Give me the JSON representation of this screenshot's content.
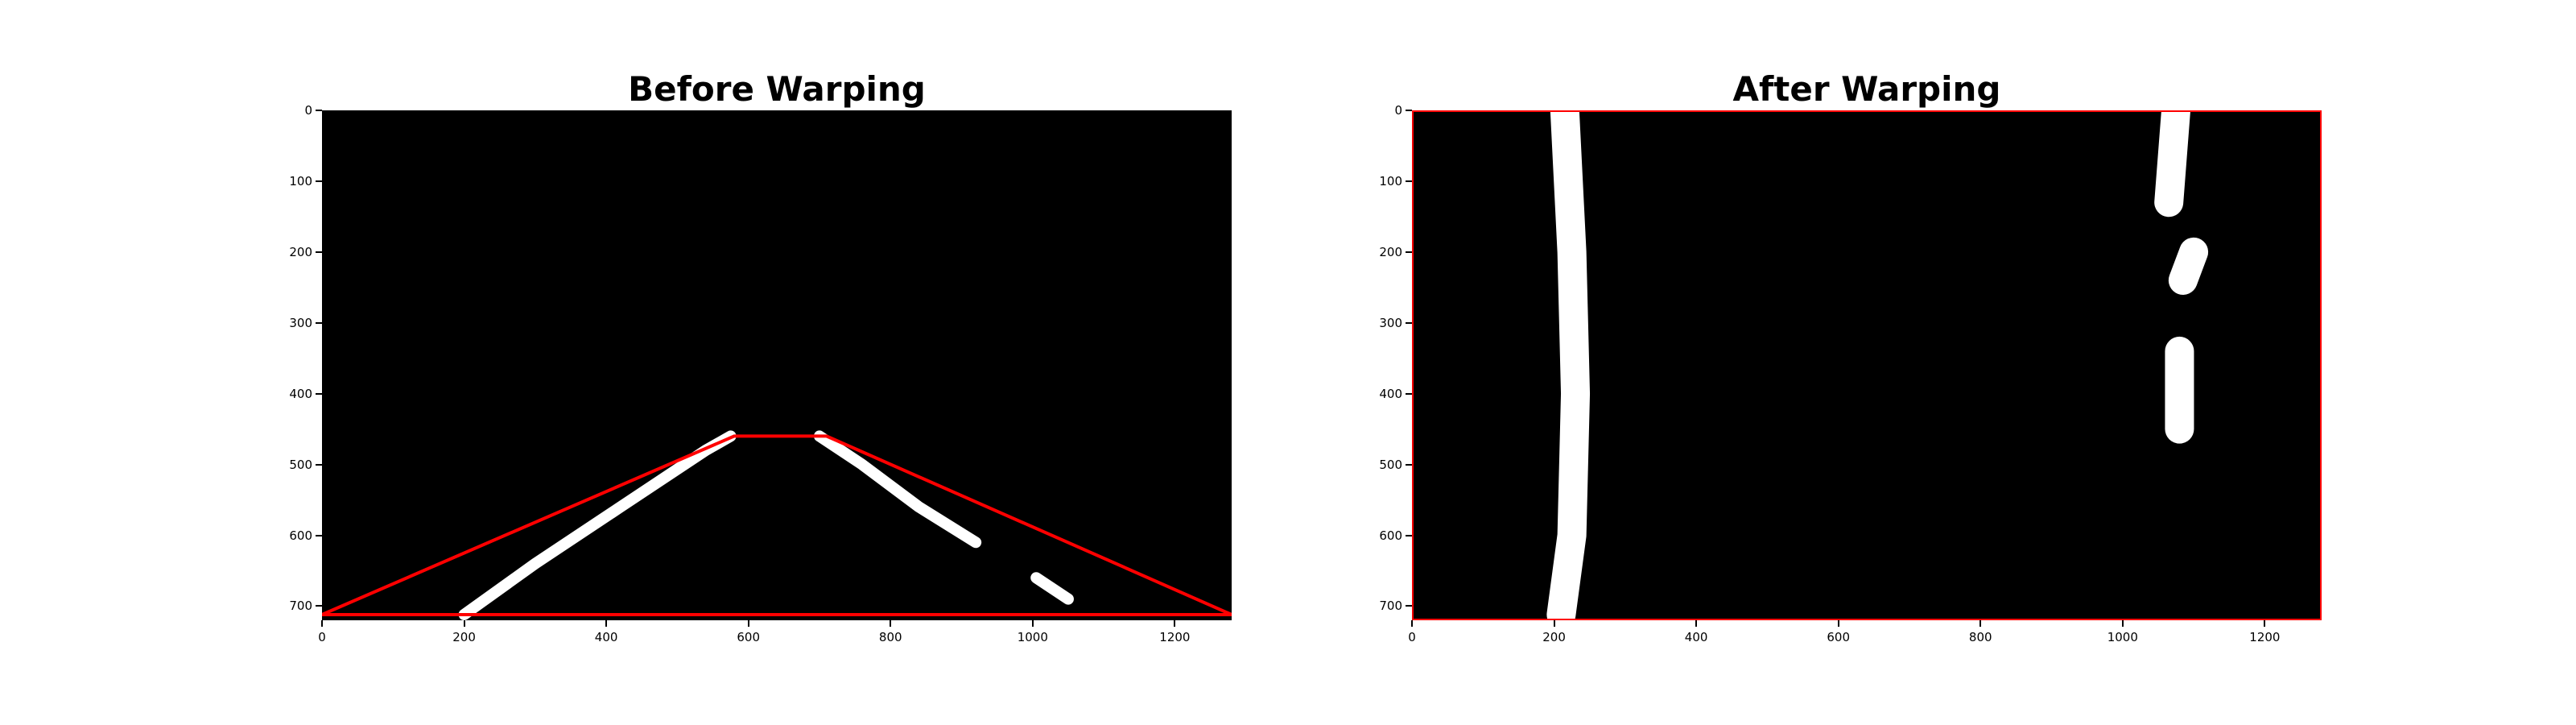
{
  "chart_data": [
    {
      "type": "image",
      "title": "Before Warping",
      "xlim": [
        0,
        1280
      ],
      "ylim": [
        0,
        720
      ],
      "x_ticks": [
        0,
        200,
        400,
        600,
        800,
        1000,
        1200
      ],
      "y_ticks": [
        0,
        100,
        200,
        300,
        400,
        500,
        600,
        700
      ],
      "x_tick_labels": [
        "0",
        "200",
        "400",
        "600",
        "800",
        "1000",
        "1200"
      ],
      "y_tick_labels": [
        "0",
        "100",
        "200",
        "300",
        "400",
        "500",
        "600",
        "700"
      ],
      "y_inverted": true,
      "background": "#000000",
      "foreground": "#ffffff",
      "overlay": {
        "shape": "polygon",
        "color": "#ff0000",
        "points": [
          [
            0,
            712
          ],
          [
            580,
            460
          ],
          [
            710,
            460
          ],
          [
            1280,
            712
          ]
        ]
      },
      "lane_pixels": [
        {
          "points": [
            [
              200,
              712
            ],
            [
              300,
              640
            ],
            [
              420,
              560
            ],
            [
              540,
              480
            ],
            [
              575,
              460
            ]
          ]
        },
        {
          "points": [
            [
              700,
              460
            ],
            [
              760,
              500
            ],
            [
              840,
              560
            ],
            [
              920,
              610
            ]
          ]
        },
        {
          "points": [
            [
              1005,
              660
            ],
            [
              1050,
              690
            ]
          ]
        }
      ]
    },
    {
      "type": "image",
      "title": "After Warping",
      "xlim": [
        0,
        1280
      ],
      "ylim": [
        0,
        720
      ],
      "x_ticks": [
        0,
        200,
        400,
        600,
        800,
        1000,
        1200
      ],
      "y_ticks": [
        0,
        100,
        200,
        300,
        400,
        500,
        600,
        700
      ],
      "x_tick_labels": [
        "0",
        "200",
        "400",
        "600",
        "800",
        "1000",
        "1200"
      ],
      "y_tick_labels": [
        "0",
        "100",
        "200",
        "300",
        "400",
        "500",
        "600",
        "700"
      ],
      "y_inverted": true,
      "background": "#000000",
      "foreground": "#ffffff",
      "overlay": {
        "shape": "rectangle",
        "color": "#ff0000",
        "points": [
          [
            0,
            0
          ],
          [
            1280,
            0
          ],
          [
            1280,
            720
          ],
          [
            0,
            720
          ]
        ]
      },
      "lane_pixels": [
        {
          "points": [
            [
              215,
              0
            ],
            [
              225,
              200
            ],
            [
              230,
              400
            ],
            [
              225,
              600
            ],
            [
              210,
              712
            ]
          ]
        },
        {
          "points": [
            [
              1075,
              0
            ],
            [
              1065,
              130
            ]
          ]
        },
        {
          "points": [
            [
              1100,
              200
            ],
            [
              1085,
              240
            ]
          ]
        },
        {
          "points": [
            [
              1080,
              340
            ],
            [
              1080,
              450
            ]
          ]
        }
      ]
    }
  ]
}
